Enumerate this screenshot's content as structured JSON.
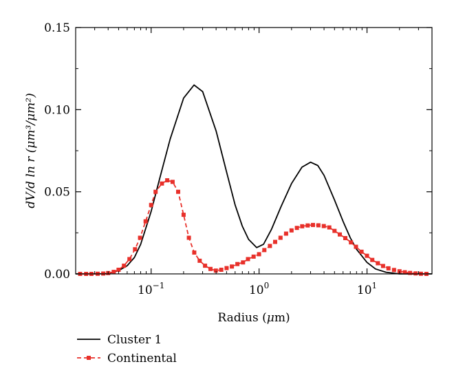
{
  "chart_data": {
    "type": "line",
    "xscale": "log",
    "xlim": [
      0.02,
      40
    ],
    "ylim": [
      0,
      0.15
    ],
    "grid": false,
    "legend_placement": "bottom-left",
    "xlabel": {
      "prefix": "Radius (",
      "mu": "μ",
      "suffix": "m)"
    },
    "ylabel": "dV/d ln r (μm³/μm²)",
    "x_ticks": [
      {
        "value": 0.1,
        "base": "10",
        "exp": "−1"
      },
      {
        "value": 1,
        "base": "10",
        "exp": "0"
      },
      {
        "value": 10,
        "base": "10",
        "exp": "1"
      }
    ],
    "y_ticks": [
      {
        "value": 0,
        "label": "0.00"
      },
      {
        "value": 0.05,
        "label": "0.05"
      },
      {
        "value": 0.1,
        "label": "0.10"
      },
      {
        "value": 0.15,
        "label": "0.15"
      }
    ],
    "series": [
      {
        "name": "Cluster 1",
        "color": "#000000",
        "style": "solid",
        "markers": false,
        "x": [
          0.02,
          0.03,
          0.04,
          0.05,
          0.06,
          0.07,
          0.08,
          0.1,
          0.12,
          0.15,
          0.2,
          0.25,
          0.3,
          0.4,
          0.5,
          0.6,
          0.7,
          0.8,
          0.95,
          1.1,
          1.3,
          1.6,
          2.0,
          2.5,
          3.0,
          3.5,
          4.0,
          5.0,
          6.0,
          7.0,
          8.0,
          10.0,
          12.0,
          15.0,
          20.0,
          25.0,
          40.0
        ],
        "y": [
          0.0,
          0.0,
          0.0002,
          0.002,
          0.005,
          0.01,
          0.018,
          0.038,
          0.058,
          0.082,
          0.107,
          0.115,
          0.111,
          0.087,
          0.062,
          0.042,
          0.029,
          0.021,
          0.016,
          0.018,
          0.027,
          0.041,
          0.055,
          0.065,
          0.068,
          0.066,
          0.06,
          0.045,
          0.032,
          0.022,
          0.015,
          0.007,
          0.003,
          0.001,
          0.0,
          0.0,
          0.0
        ]
      },
      {
        "name": "Continental",
        "color": "#e8302a",
        "style": "dashed",
        "markers": true,
        "x": [
          0.022,
          0.025,
          0.028,
          0.032,
          0.036,
          0.04,
          0.045,
          0.05,
          0.056,
          0.063,
          0.071,
          0.079,
          0.089,
          0.1,
          0.11,
          0.126,
          0.141,
          0.158,
          0.178,
          0.2,
          0.224,
          0.251,
          0.282,
          0.316,
          0.355,
          0.398,
          0.447,
          0.5,
          0.56,
          0.63,
          0.71,
          0.79,
          0.89,
          1.0,
          1.12,
          1.26,
          1.41,
          1.58,
          1.78,
          2.0,
          2.24,
          2.51,
          2.82,
          3.16,
          3.55,
          3.98,
          4.47,
          5.0,
          5.6,
          6.3,
          7.1,
          7.9,
          8.9,
          10.0,
          11.2,
          12.6,
          14.1,
          15.8,
          17.8,
          20.0,
          22.4,
          25.1,
          28.2,
          31.6,
          35.5
        ],
        "y": [
          0.0,
          0.0,
          0.0,
          0.0001,
          0.0002,
          0.0005,
          0.0012,
          0.0025,
          0.005,
          0.009,
          0.015,
          0.022,
          0.032,
          0.042,
          0.05,
          0.055,
          0.057,
          0.056,
          0.05,
          0.036,
          0.022,
          0.013,
          0.008,
          0.005,
          0.003,
          0.002,
          0.0025,
          0.0035,
          0.0045,
          0.006,
          0.007,
          0.009,
          0.0105,
          0.012,
          0.0145,
          0.017,
          0.0195,
          0.022,
          0.0245,
          0.0265,
          0.028,
          0.029,
          0.0295,
          0.0298,
          0.0296,
          0.0291,
          0.0283,
          0.0262,
          0.024,
          0.0218,
          0.0192,
          0.0165,
          0.0135,
          0.011,
          0.0085,
          0.0065,
          0.0048,
          0.0034,
          0.0024,
          0.0016,
          0.001,
          0.0006,
          0.0003,
          0.0001,
          0.0
        ]
      }
    ]
  }
}
